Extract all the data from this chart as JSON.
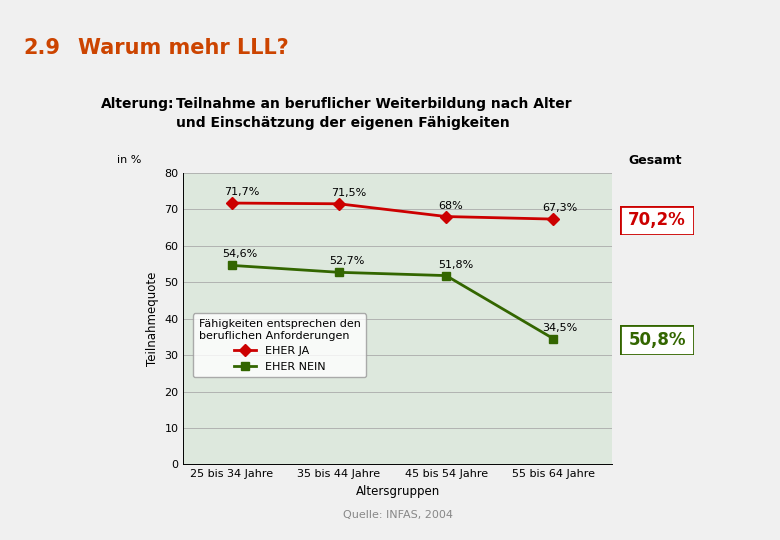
{
  "title_number": "2.9",
  "title_text": "Warum mehr LLL?",
  "subtitle_label": "Alterung:",
  "subtitle_text": "Teilnahme an beruflicher Weiterbildung nach Alter\nund Einschätzung der eigenen Fähigkeiten",
  "x_labels": [
    "25 bis 34 Jahre",
    "35 bis 44 Jahre",
    "45 bis 54 Jahre",
    "55 bis 64 Jahre"
  ],
  "x_axis_label": "Altersgruppen",
  "y_axis_label": "Teilnahmequote",
  "y_label_top": "in %",
  "y_lim": [
    0,
    80
  ],
  "y_ticks": [
    0,
    10,
    20,
    30,
    40,
    50,
    60,
    70,
    80
  ],
  "eher_ja_values": [
    71.7,
    71.5,
    68.0,
    67.3
  ],
  "eher_nein_values": [
    54.6,
    52.7,
    51.8,
    34.5
  ],
  "eher_ja_labels": [
    "71,7%",
    "71,5%",
    "68%",
    "67,3%"
  ],
  "eher_nein_labels": [
    "54,6%",
    "52,7%",
    "51,8%",
    "34,5%"
  ],
  "eher_ja_color": "#cc0000",
  "eher_nein_color": "#336600",
  "gesamt_ja_value": "70,2%",
  "gesamt_nein_value": "50,8%",
  "gesamt_label": "Gesamt",
  "source_text": "Quelle: INFAS, 2004",
  "legend_title": "Fähigkeiten entsprechen den\nberuflichen Anforderungen",
  "legend_ja": "EHER JA",
  "legend_nein": "EHER NEIN",
  "bg_color": "#dde8dd",
  "title_color": "#cc4400",
  "page_bg": "#f0f0f0"
}
